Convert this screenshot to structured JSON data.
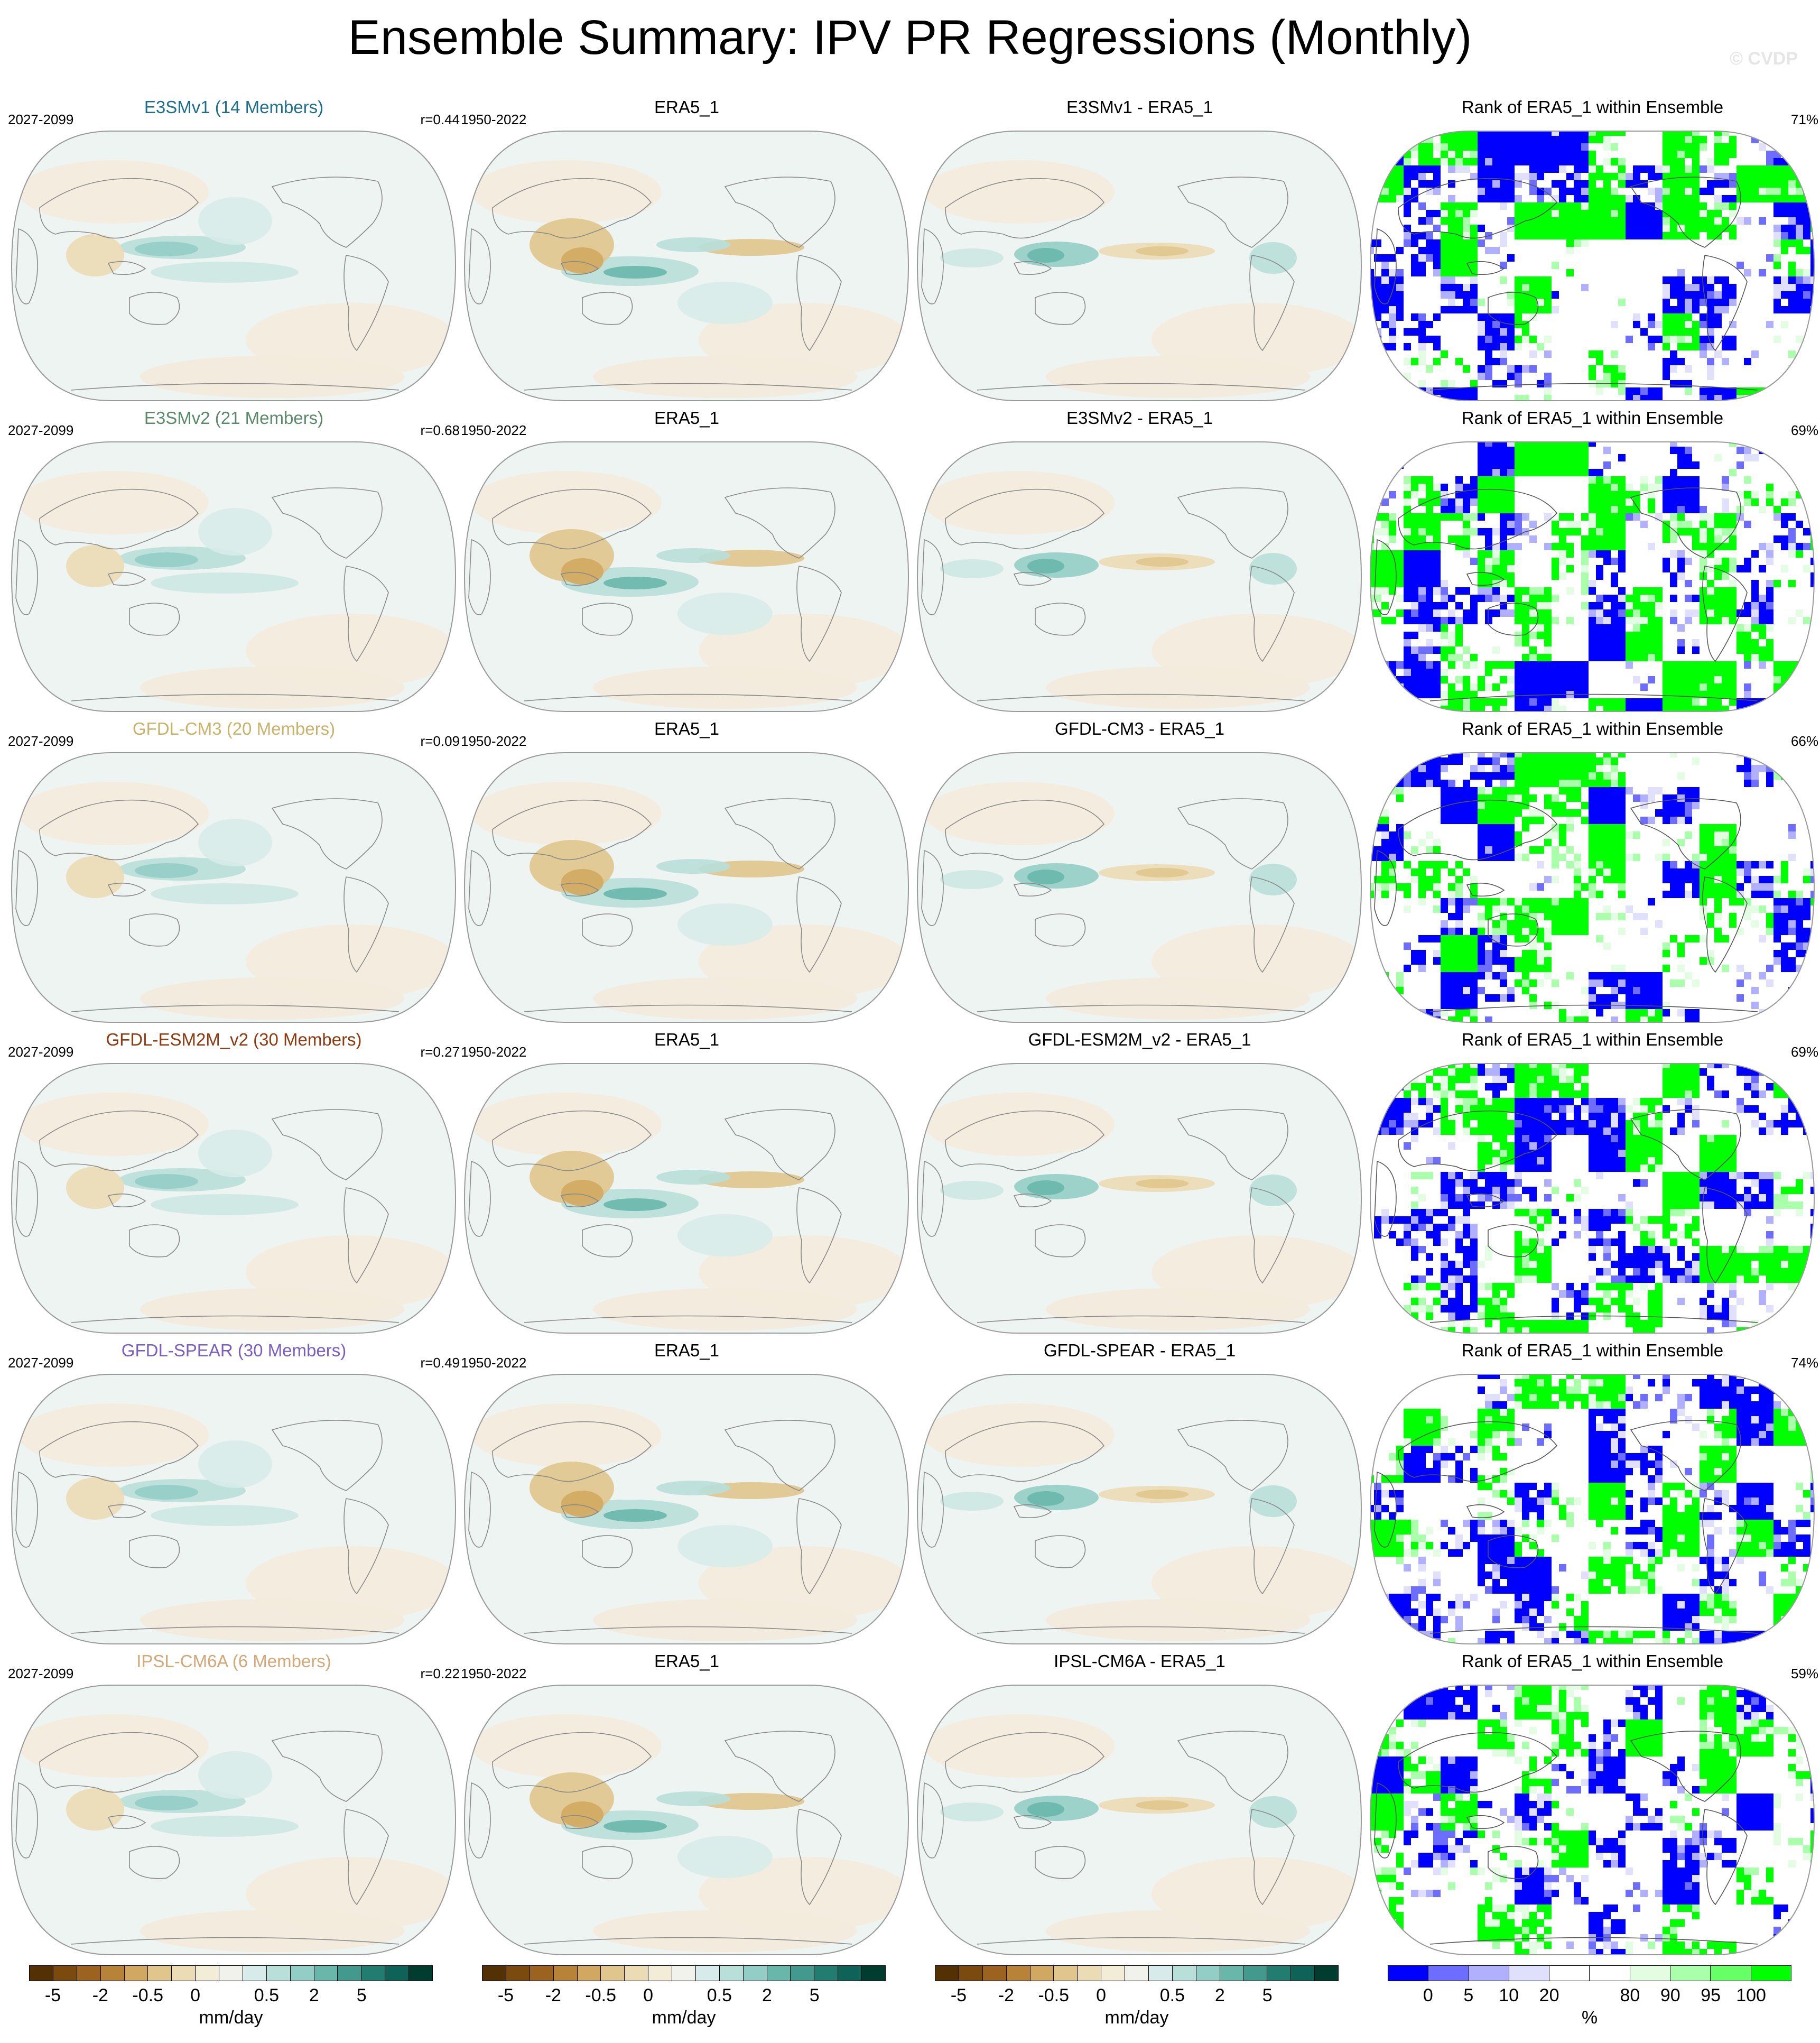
{
  "title": "Ensemble Summary: IPV PR Regressions (Monthly)",
  "watermark": "© CVDP",
  "rows": [
    {
      "model_title": "E3SMv1 (14 Members)",
      "model_color": "#1f6f8b",
      "model_period": "2027-2099",
      "corr": "r=0.44",
      "obs_title": "ERA5_1",
      "obs_period": "1950-2022",
      "diff_title": "E3SMv1 - ERA5_1",
      "rank_title": "Rank of ERA5_1 within Ensemble",
      "rank_pct": "71%"
    },
    {
      "model_title": "E3SMv2 (21 Members)",
      "model_color": "#5a8a6a",
      "model_period": "2027-2099",
      "corr": "r=0.68",
      "obs_title": "ERA5_1",
      "obs_period": "1950-2022",
      "diff_title": "E3SMv2 - ERA5_1",
      "rank_title": "Rank of ERA5_1 within Ensemble",
      "rank_pct": "69%"
    },
    {
      "model_title": "GFDL-CM3 (20 Members)",
      "model_color": "#c9b36a",
      "model_period": "2027-2099",
      "corr": "r=0.09",
      "obs_title": "ERA5_1",
      "obs_period": "1950-2022",
      "diff_title": "GFDL-CM3 - ERA5_1",
      "rank_title": "Rank of ERA5_1 within Ensemble",
      "rank_pct": "66%"
    },
    {
      "model_title": "GFDL-ESM2M_v2 (30 Members)",
      "model_color": "#8b3a12",
      "model_period": "2027-2099",
      "corr": "r=0.27",
      "obs_title": "ERA5_1",
      "obs_period": "1950-2022",
      "diff_title": "GFDL-ESM2M_v2 - ERA5_1",
      "rank_title": "Rank of ERA5_1 within Ensemble",
      "rank_pct": "69%"
    },
    {
      "model_title": "GFDL-SPEAR (30 Members)",
      "model_color": "#7b5fc0",
      "model_period": "2027-2099",
      "corr": "r=0.49",
      "obs_title": "ERA5_1",
      "obs_period": "1950-2022",
      "diff_title": "GFDL-SPEAR - ERA5_1",
      "rank_title": "Rank of ERA5_1 within Ensemble",
      "rank_pct": "74%"
    },
    {
      "model_title": "IPSL-CM6A (6 Members)",
      "model_color": "#d2a878",
      "model_period": "2027-2099",
      "corr": "r=0.22",
      "obs_title": "ERA5_1",
      "obs_period": "1950-2022",
      "diff_title": "IPSL-CM6A - ERA5_1",
      "rank_title": "Rank of ERA5_1 within Ensemble",
      "rank_pct": "59%"
    }
  ],
  "colorbar_brbg": {
    "colors": [
      "#543005",
      "#7a4a0f",
      "#9c6220",
      "#b88238",
      "#d1a861",
      "#e0c58d",
      "#ecdcb5",
      "#f3ecd7",
      "#f2f2ec",
      "#d7ecea",
      "#b8dfd9",
      "#93cec6",
      "#69b7ab",
      "#43998d",
      "#237c70",
      "#0f6257",
      "#003c30"
    ],
    "ticks": [
      "-5",
      "-2",
      "-0.5",
      "0",
      "0.5",
      "2",
      "5"
    ],
    "tick_slots": [
      1,
      3,
      5,
      7,
      10,
      12,
      14
    ],
    "unit": "mm/day"
  },
  "colorbar_rank": {
    "colors": [
      "#0000ff",
      "#6d6dff",
      "#b0b0ff",
      "#e0e0fd",
      "#ffffff",
      "#ffffff",
      "#e3fde3",
      "#aaffaa",
      "#66ff66",
      "#00ff00"
    ],
    "ticks": [
      "0",
      "5",
      "10",
      "20",
      "80",
      "90",
      "95",
      "100"
    ],
    "tick_slots": [
      1,
      2,
      3,
      4,
      6,
      7,
      8,
      9
    ],
    "unit": "%"
  }
}
